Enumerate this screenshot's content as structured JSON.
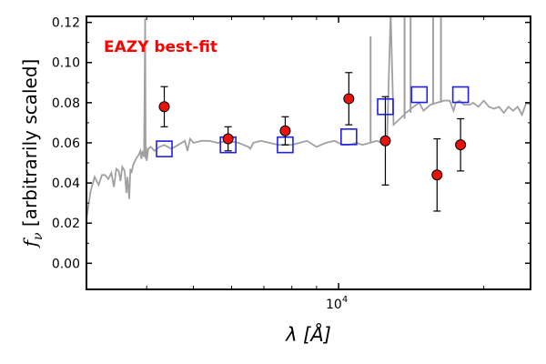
{
  "chart_data": {
    "type": "scatter",
    "title": "",
    "annotation": "EAZY best-fit",
    "annotation_color": "#ff0000",
    "xlabel": "λ [Å]",
    "ylabel": "f_ν [arbitrarily scaled]",
    "x_scale": "log",
    "xlim": [
      3000,
      25000
    ],
    "ylim": [
      -0.013,
      0.123
    ],
    "y_ticks": [
      0.0,
      0.02,
      0.04,
      0.06,
      0.08,
      0.1,
      0.12
    ],
    "y_tick_labels": [
      "0.00",
      "0.02",
      "0.04",
      "0.06",
      "0.08",
      "0.10",
      "0.12"
    ],
    "x_tick_labels": [
      {
        "value": 10000,
        "base": "10",
        "exponent": "4"
      }
    ],
    "grid": false,
    "colors": {
      "template": "#a0a0a0",
      "observed_fill": "#e8130f",
      "observed_edge": "#000000",
      "model": "#1f1fe6"
    },
    "series": [
      {
        "kind": "observed",
        "x": [
          4350,
          5900,
          7750,
          10500,
          12500,
          16000,
          17900
        ],
        "y": [
          0.078,
          0.062,
          0.066,
          0.082,
          0.061,
          0.044,
          0.059
        ],
        "yerr": [
          0.01,
          0.006,
          0.007,
          0.013,
          0.022,
          0.018,
          0.013
        ]
      },
      {
        "kind": "model",
        "x": [
          4350,
          5900,
          7750,
          10500,
          12500,
          14700,
          17900
        ],
        "y": [
          0.057,
          0.059,
          0.059,
          0.063,
          0.078,
          0.084,
          0.084
        ]
      },
      {
        "kind": "template",
        "x": [
          3000,
          3060,
          3120,
          3180,
          3230,
          3280,
          3330,
          3380,
          3420,
          3460,
          3500,
          3530,
          3560,
          3600,
          3630,
          3650,
          3680,
          3700,
          3720,
          3750,
          3800,
          3850,
          3880,
          3900,
          3920,
          3950,
          3970,
          3980,
          3990,
          4000,
          4030,
          4080,
          4150,
          4250,
          4350,
          4500,
          4650,
          4800,
          4860,
          4920,
          5000,
          5200,
          5400,
          5600,
          5900,
          6200,
          6500,
          6560,
          6650,
          6900,
          7200,
          7500,
          7750,
          8000,
          8300,
          8600,
          9000,
          9400,
          9800,
          10200,
          10500,
          10900,
          11200,
          11600,
          12000,
          12300,
          12600,
          12820,
          13000,
          13400,
          13800,
          14300,
          14700,
          15000,
          15500,
          16000,
          16500,
          17000,
          17300,
          17500,
          17800,
          18200,
          18700,
          19000,
          19500,
          20000,
          20500,
          21000,
          21500,
          22000,
          22500,
          23000,
          23500,
          24000,
          24500,
          25000
        ],
        "y": [
          0.022,
          0.036,
          0.043,
          0.039,
          0.044,
          0.044,
          0.042,
          0.045,
          0.038,
          0.047,
          0.046,
          0.041,
          0.048,
          0.046,
          0.035,
          0.043,
          0.032,
          0.047,
          0.045,
          0.049,
          0.052,
          0.054,
          0.056,
          0.052,
          0.056,
          0.053,
          0.122,
          0.052,
          0.058,
          0.051,
          0.057,
          0.058,
          0.056,
          0.058,
          0.059,
          0.057,
          0.059,
          0.061,
          0.056,
          0.062,
          0.06,
          0.061,
          0.061,
          0.06,
          0.061,
          0.06,
          0.058,
          0.057,
          0.06,
          0.061,
          0.06,
          0.059,
          0.059,
          0.059,
          0.06,
          0.061,
          0.058,
          0.06,
          0.061,
          0.059,
          0.059,
          0.06,
          0.059,
          0.06,
          0.061,
          0.06,
          0.061,
          0.125,
          0.069,
          0.072,
          0.075,
          0.078,
          0.08,
          0.076,
          0.079,
          0.08,
          0.081,
          0.081,
          0.076,
          0.08,
          0.081,
          0.079,
          0.079,
          0.08,
          0.078,
          0.081,
          0.078,
          0.077,
          0.078,
          0.075,
          0.078,
          0.076,
          0.078,
          0.074,
          0.08,
          0.079
        ]
      }
    ],
    "emission_spikes": [
      {
        "x": 11650,
        "y": 0.113
      },
      {
        "x": 13700,
        "y": 0.125
      },
      {
        "x": 14100,
        "y": 0.125
      },
      {
        "x": 15700,
        "y": 0.125
      },
      {
        "x": 16300,
        "y": 0.125
      }
    ]
  }
}
